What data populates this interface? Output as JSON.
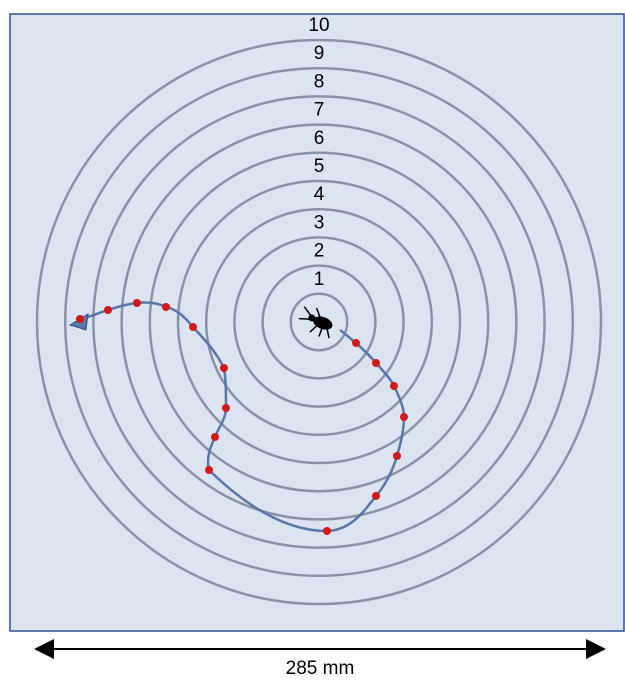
{
  "rings": [
    "1",
    "2",
    "3",
    "4",
    "5",
    "6",
    "7",
    "8",
    "9",
    "10"
  ],
  "scale": {
    "label": "285 mm"
  }
}
